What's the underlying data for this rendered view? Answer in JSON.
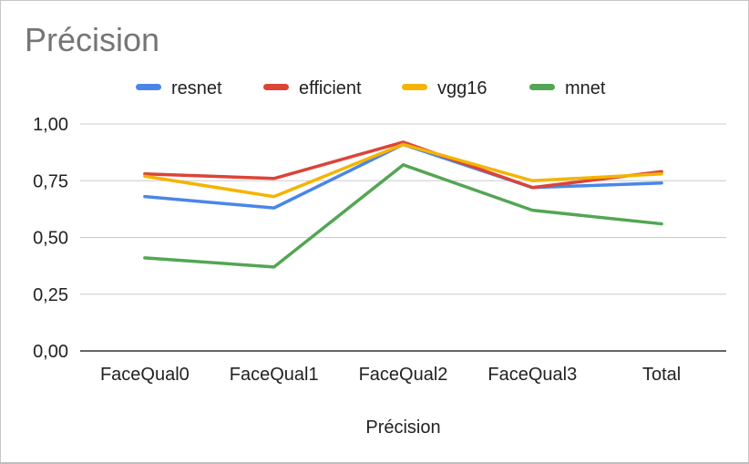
{
  "chart_data": {
    "type": "line",
    "title": "Précision",
    "xlabel": "Précision",
    "ylabel": "",
    "categories": [
      "FaceQual0",
      "FaceQual1",
      "FaceQual2",
      "FaceQual3",
      "Total"
    ],
    "ylim": [
      0,
      1
    ],
    "yticks": [
      0,
      0.25,
      0.5,
      0.75,
      1.0
    ],
    "ytick_labels": [
      "0,00",
      "0,25",
      "0,50",
      "0,75",
      "1,00"
    ],
    "grid": true,
    "legend_position": "top",
    "series": [
      {
        "name": "resnet",
        "color": "#4a86e8",
        "values": [
          0.68,
          0.63,
          0.91,
          0.72,
          0.74
        ]
      },
      {
        "name": "efficient",
        "color": "#db4437",
        "values": [
          0.78,
          0.76,
          0.92,
          0.72,
          0.79
        ]
      },
      {
        "name": "vgg16",
        "color": "#f4b400",
        "values": [
          0.77,
          0.68,
          0.91,
          0.75,
          0.78
        ]
      },
      {
        "name": "mnet",
        "color": "#53a653",
        "values": [
          0.41,
          0.37,
          0.82,
          0.62,
          0.56
        ]
      }
    ]
  }
}
